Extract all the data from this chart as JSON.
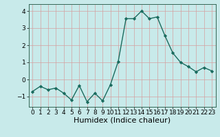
{
  "x": [
    0,
    1,
    2,
    3,
    4,
    5,
    6,
    7,
    8,
    9,
    10,
    11,
    12,
    13,
    14,
    15,
    16,
    17,
    18,
    19,
    20,
    21,
    22,
    23
  ],
  "y": [
    -0.7,
    -0.4,
    -0.6,
    -0.5,
    -0.8,
    -1.2,
    -0.35,
    -1.3,
    -0.8,
    -1.25,
    -0.3,
    1.05,
    3.55,
    3.55,
    4.0,
    3.55,
    3.65,
    2.55,
    1.55,
    1.0,
    0.75,
    0.45,
    0.7,
    0.5
  ],
  "line_color": "#1a6b5e",
  "marker": "D",
  "marker_size": 2.2,
  "linewidth": 1.0,
  "xlabel": "Humidex (Indice chaleur)",
  "ylim": [
    -1.6,
    4.4
  ],
  "xlim": [
    -0.5,
    23.5
  ],
  "yticks": [
    -1,
    0,
    1,
    2,
    3,
    4
  ],
  "xticks": [
    0,
    1,
    2,
    3,
    4,
    5,
    6,
    7,
    8,
    9,
    10,
    11,
    12,
    13,
    14,
    15,
    16,
    17,
    18,
    19,
    20,
    21,
    22,
    23
  ],
  "bg_color": "#c8eaea",
  "grid_color": "#b0d4d4",
  "tick_fontsize": 6.5,
  "xlabel_fontsize": 8
}
